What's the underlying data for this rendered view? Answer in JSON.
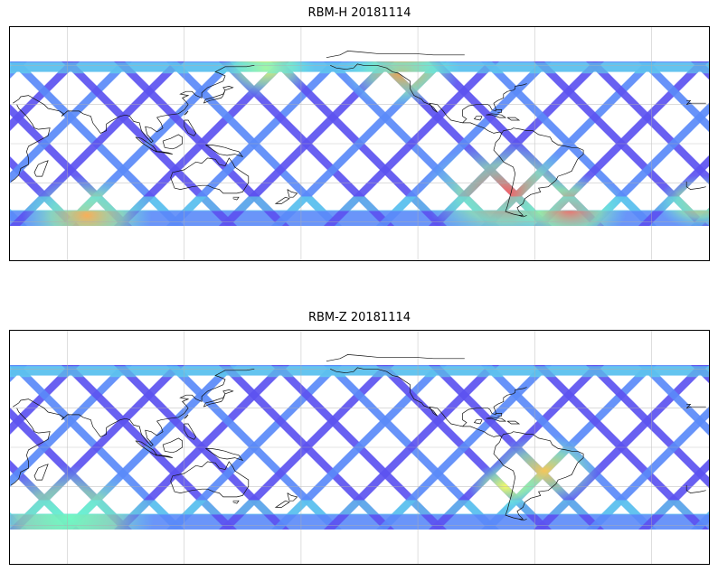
{
  "panels": [
    {
      "title": "RBM-H 20181114",
      "hot_spots": [
        {
          "lon": 285,
          "lat": -38,
          "r": 58,
          "color": "#ff5a5a"
        },
        {
          "lon": 318,
          "lat": -50,
          "r": 40,
          "color": "#ff6060"
        },
        {
          "lon": 232,
          "lat": 55,
          "r": 40,
          "color": "#ffa040"
        },
        {
          "lon": 162,
          "lat": 58,
          "r": 34,
          "color": "#f0ff60"
        },
        {
          "lon": 25,
          "lat": -45,
          "r": 30,
          "color": "#ffb050"
        },
        {
          "lon": 70,
          "lat": -55,
          "r": 45,
          "color": "#ffb050"
        }
      ]
    },
    {
      "title": "RBM-Z 20181114",
      "hot_spots": [
        {
          "lon": 305,
          "lat": -18,
          "r": 40,
          "color": "#ffc850"
        },
        {
          "lon": 285,
          "lat": -30,
          "r": 26,
          "color": "#ffff60"
        },
        {
          "lon": 60,
          "lat": -55,
          "r": 60,
          "color": "#70ffc0"
        }
      ]
    }
  ],
  "colormap": [
    "#5c52f0",
    "#5a8af8",
    "#58c8fa",
    "#60f4e6",
    "#9cfb9c",
    "#e8fb60",
    "#ffc050",
    "#ff6a5a"
  ]
}
